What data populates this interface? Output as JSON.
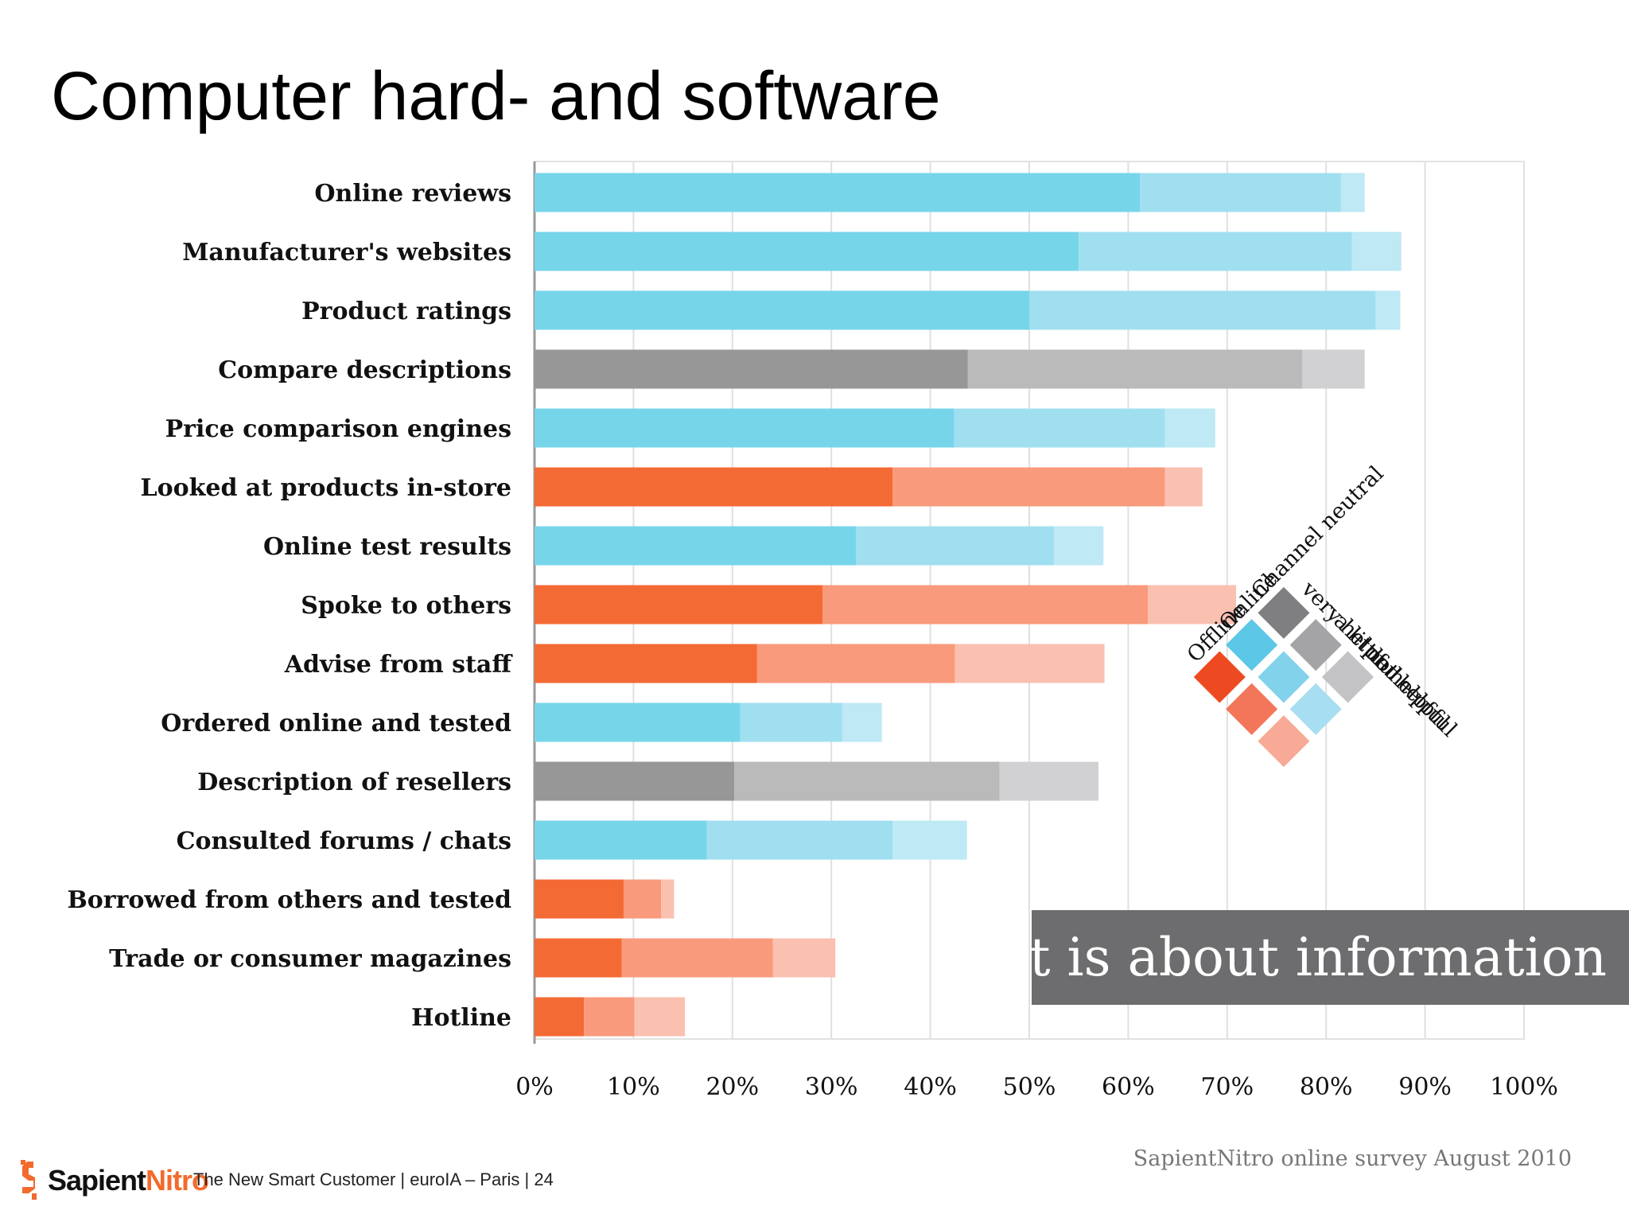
{
  "title": "Computer hard- and software",
  "callout": "It is about information",
  "source": "SapientNitro online survey August 2010",
  "footer": {
    "logo_part1": "Sapient",
    "logo_part2": "Nitro",
    "text": "The New Smart Customer  |  euroIA – Paris  |  24"
  },
  "colors": {
    "offline": [
      "#f46a35",
      "#f89a7b",
      "#fac0b0"
    ],
    "online": [
      "#77d5ea",
      "#a0dff0",
      "#bee9f5"
    ],
    "channel_neutral": [
      "#979798",
      "#bababb",
      "#d1d0d2"
    ]
  },
  "legend": {
    "channels": [
      "Offline",
      "Online",
      "Channel neutral"
    ],
    "helpfulness": [
      "very helpful",
      "a little helpful",
      "not helpful"
    ]
  },
  "chart_data": {
    "type": "bar",
    "orientation": "horizontal",
    "stacked": true,
    "xlim": [
      0,
      100
    ],
    "x_ticks": [
      "0%",
      "10%",
      "20%",
      "30%",
      "40%",
      "50%",
      "60%",
      "70%",
      "80%",
      "90%",
      "100%"
    ],
    "grid": true,
    "categories": [
      "Online reviews",
      "Manufacturer's websites",
      "Product ratings",
      "Compare descriptions",
      "Price comparison engines",
      "Looked at products in-store",
      "Online test results",
      "Spoke to others",
      "Advise from staff",
      "Ordered online and tested",
      "Description of resellers",
      "Consulted forums / chats",
      "Borrowed from others and tested",
      "Trade or consumer magazines",
      "Hotline"
    ],
    "channel": [
      "online",
      "online",
      "online",
      "channel_neutral",
      "online",
      "offline",
      "online",
      "offline",
      "offline",
      "online",
      "channel_neutral",
      "online",
      "offline",
      "offline",
      "offline"
    ],
    "series": [
      {
        "name": "very helpful",
        "values": [
          61.2,
          55.0,
          50.0,
          43.8,
          42.4,
          36.2,
          32.5,
          29.1,
          22.5,
          20.8,
          20.2,
          17.4,
          9.0,
          8.8,
          5.0
        ]
      },
      {
        "name": "a little helpful",
        "values": [
          20.3,
          27.6,
          35.0,
          33.8,
          21.3,
          27.5,
          20.0,
          32.9,
          20.0,
          10.3,
          26.8,
          18.8,
          3.8,
          15.3,
          5.1
        ]
      },
      {
        "name": "not helpful",
        "values": [
          2.4,
          5.0,
          2.5,
          6.3,
          5.1,
          3.8,
          5.0,
          8.9,
          15.1,
          4.0,
          10.0,
          7.5,
          1.3,
          6.3,
          5.1
        ]
      }
    ]
  }
}
